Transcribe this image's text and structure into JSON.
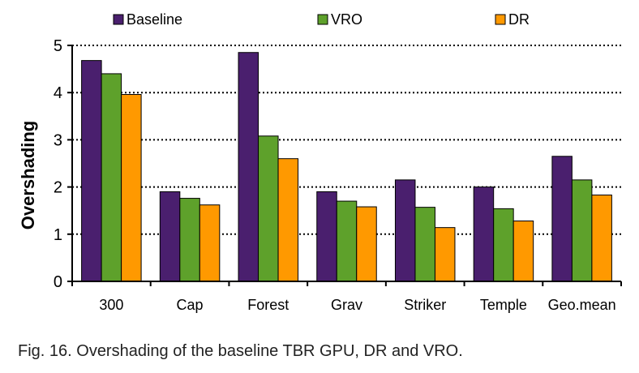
{
  "caption": "Fig. 16. Overshading of the baseline TBR GPU, DR and VRO.",
  "chart_data": {
    "type": "bar",
    "title": "",
    "xlabel": "",
    "ylabel": "Overshading",
    "ylim": [
      0,
      5
    ],
    "yticks": [
      0,
      1,
      2,
      3,
      4,
      5
    ],
    "grid": true,
    "legend_position": "top",
    "categories": [
      "300",
      "Cap",
      "Forest",
      "Grav",
      "Striker",
      "Temple",
      "Geo.mean"
    ],
    "series": [
      {
        "name": "Baseline",
        "color": "#4a1f6e",
        "values": [
          4.68,
          1.9,
          4.85,
          1.9,
          2.15,
          2.0,
          2.65
        ]
      },
      {
        "name": "VRO",
        "color": "#5ea12b",
        "values": [
          4.4,
          1.76,
          3.08,
          1.7,
          1.57,
          1.54,
          2.15
        ]
      },
      {
        "name": "DR",
        "color": "#ff9900",
        "values": [
          3.96,
          1.62,
          2.6,
          1.58,
          1.14,
          1.28,
          1.83
        ]
      }
    ]
  }
}
